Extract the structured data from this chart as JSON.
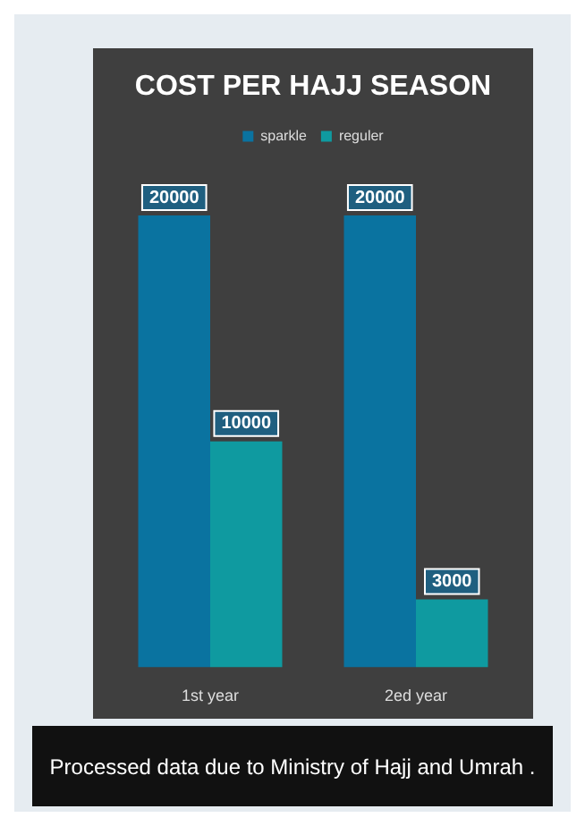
{
  "chart_data": {
    "type": "bar",
    "title": "COST PER HAJJ SEASON",
    "categories": [
      "1st year",
      "2ed year"
    ],
    "series": [
      {
        "name": "sparkle",
        "color": "#0a73a0",
        "values": [
          20000,
          20000
        ]
      },
      {
        "name": "reguler",
        "color": "#0f9aa0",
        "values": [
          10000,
          3000
        ]
      }
    ],
    "data_labels": true,
    "legend": "top",
    "grid": false,
    "annotations": [
      "Processed data due to Ministry of Hajj and Umrah ."
    ]
  }
}
